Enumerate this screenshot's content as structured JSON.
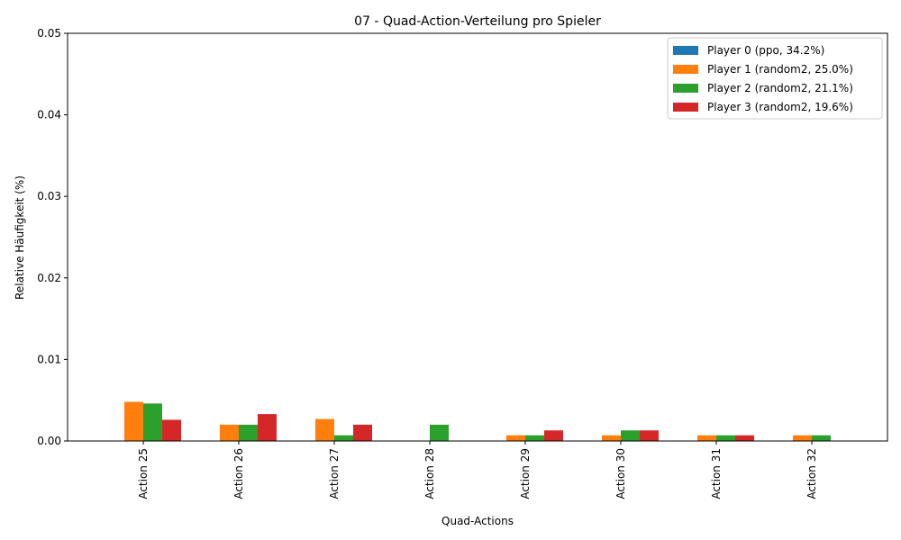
{
  "chart_data": {
    "type": "bar",
    "title": "07 - Quad-Action-Verteilung pro Spieler",
    "xlabel": "Quad-Actions",
    "ylabel": "Relative Häufigkeit (%)",
    "ylim": [
      0,
      0.05
    ],
    "yticks": [
      "0.00",
      "0.01",
      "0.02",
      "0.03",
      "0.04",
      "0.05"
    ],
    "ytick_values": [
      0,
      0.01,
      0.02,
      0.03,
      0.04,
      0.05
    ],
    "grid": false,
    "legend_position": "top-right",
    "categories": [
      "Action 25",
      "Action 26",
      "Action 27",
      "Action 28",
      "Action 29",
      "Action 30",
      "Action 31",
      "Action 32"
    ],
    "series": [
      {
        "name": "Player 0 (ppo, 34.2%)",
        "color": "#1f77b4",
        "values": [
          0,
          0,
          0,
          0,
          0,
          0,
          0,
          0
        ]
      },
      {
        "name": "Player 1 (random2, 25.0%)",
        "color": "#ff7f0e",
        "values": [
          0.0048,
          0.002,
          0.0027,
          0,
          0.0007,
          0.0007,
          0.0007,
          0.0007
        ]
      },
      {
        "name": "Player 2 (random2, 21.1%)",
        "color": "#2ca02c",
        "values": [
          0.0046,
          0.002,
          0.0007,
          0.002,
          0.0007,
          0.0013,
          0.0007,
          0.0007
        ]
      },
      {
        "name": "Player 3 (random2, 19.6%)",
        "color": "#d62728",
        "values": [
          0.0026,
          0.0033,
          0.002,
          0,
          0.0013,
          0.0013,
          0.0007,
          0
        ]
      }
    ]
  }
}
